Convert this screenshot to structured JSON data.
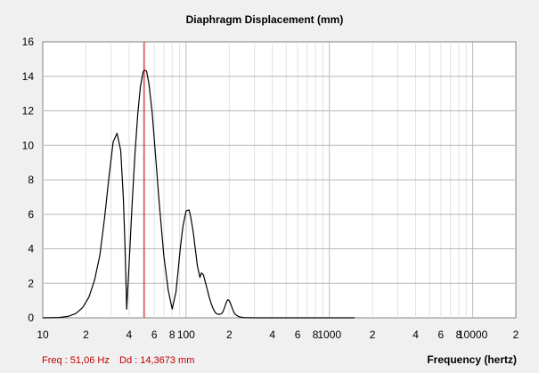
{
  "chart_data": {
    "type": "line",
    "title": "Diaphragm Displacement (mm)",
    "xlabel": "Frequency (hertz)",
    "ylabel": "",
    "x_scale": "log",
    "xlim": [
      10,
      20000
    ],
    "ylim": [
      0,
      16
    ],
    "yticks": [
      0,
      2,
      4,
      6,
      8,
      10,
      12,
      14,
      16
    ],
    "xtick_labels": [
      {
        "x": 10,
        "label": "10"
      },
      {
        "x": 20,
        "label": "2"
      },
      {
        "x": 40,
        "label": "4"
      },
      {
        "x": 60,
        "label": "6"
      },
      {
        "x": 80,
        "label": "8"
      },
      {
        "x": 100,
        "label": "100"
      },
      {
        "x": 200,
        "label": "2"
      },
      {
        "x": 400,
        "label": "4"
      },
      {
        "x": 600,
        "label": "6"
      },
      {
        "x": 800,
        "label": "8"
      },
      {
        "x": 1000,
        "label": "1000"
      },
      {
        "x": 2000,
        "label": "2"
      },
      {
        "x": 4000,
        "label": "4"
      },
      {
        "x": 6000,
        "label": "6"
      },
      {
        "x": 8000,
        "label": "8"
      },
      {
        "x": 10000,
        "label": "10000"
      },
      {
        "x": 20000,
        "label": "2"
      }
    ],
    "grid": true,
    "series": [
      {
        "color": "#000000",
        "x": [
          10,
          13,
          15,
          17,
          19,
          21,
          23,
          25,
          27,
          29,
          31,
          33,
          35,
          36.5,
          37.5,
          38.5,
          40,
          42,
          44,
          46,
          48,
          50,
          51,
          53,
          55,
          58,
          61,
          65,
          70,
          75,
          80,
          85,
          88,
          91,
          95,
          100,
          105,
          108,
          112,
          116,
          120,
          125,
          128,
          132,
          136,
          140,
          145,
          150,
          155,
          160,
          165,
          170,
          175,
          180,
          185,
          190,
          195,
          200,
          205,
          210,
          215,
          220,
          230,
          240,
          250,
          260,
          280,
          300,
          340,
          400,
          500,
          800,
          1000,
          1500
        ],
        "y": [
          0.0,
          0.02,
          0.08,
          0.25,
          0.6,
          1.2,
          2.2,
          3.6,
          5.8,
          8.2,
          10.2,
          10.7,
          9.7,
          7.0,
          4.2,
          0.5,
          3.0,
          6.6,
          9.5,
          11.8,
          13.4,
          14.2,
          14.37,
          14.3,
          13.6,
          11.9,
          9.6,
          6.6,
          3.6,
          1.6,
          0.5,
          1.5,
          2.7,
          4.0,
          5.3,
          6.2,
          6.25,
          5.8,
          5.0,
          4.0,
          3.0,
          2.35,
          2.6,
          2.5,
          2.1,
          1.7,
          1.2,
          0.8,
          0.5,
          0.3,
          0.22,
          0.2,
          0.22,
          0.32,
          0.55,
          0.85,
          1.05,
          1.0,
          0.8,
          0.55,
          0.35,
          0.2,
          0.1,
          0.04,
          0.02,
          0.01,
          0.005,
          0.0,
          0.0,
          0.0,
          0.0,
          0.0,
          0.0,
          0.0
        ]
      }
    ],
    "marker": {
      "x": 51.06,
      "color": "#cc0000"
    }
  },
  "readout": {
    "freq_text": "Freq : 51,06 Hz",
    "dd_text": "Dd : 14,3673 mm"
  },
  "colors": {
    "plot_background": "#ffffff",
    "window_background": "#f0f0f0",
    "grid_major": "#b8b8b8",
    "grid_minor": "#e2e2e2",
    "curve": "#000000",
    "marker": "#cc0000",
    "readout": "#c00000"
  }
}
